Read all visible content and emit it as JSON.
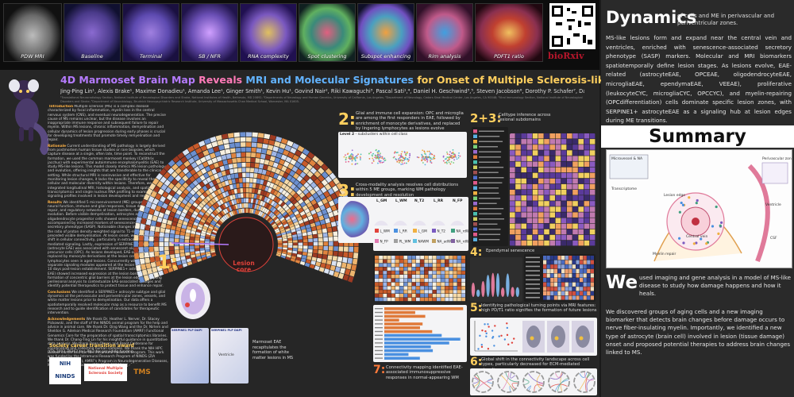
{
  "top_strip": {
    "thumbs": [
      {
        "label": "PDW MRI",
        "color": "#6a6a6a"
      },
      {
        "label": "Baseline",
        "color": "#4a3a8a"
      },
      {
        "label": "Terminal",
        "color": "#5d4ab0"
      },
      {
        "label": "SB / NFR",
        "color": "#6a4fb5"
      },
      {
        "label": "RNA complexity",
        "color": "#7a58c0"
      },
      {
        "label": "Spot clustering",
        "color": "#3a8a7a"
      },
      {
        "label": "Subspot enhancing",
        "color": "#4aa0c0"
      },
      {
        "label": "Rim analysis",
        "color": "#c05a8a"
      },
      {
        "label": "PDFT1 ratio",
        "color": "#8a3050"
      }
    ],
    "biorxiv": "bioRxiv"
  },
  "poster": {
    "title": {
      "part_a": "4D Marmoset Brain Map",
      "part_b": "Reveals",
      "part_c": "MRI and Molecular Signatures",
      "part_d": "for Onset of Multiple Sclerosis-like Lesions"
    },
    "authors": "Jing-Ping Lin¹, Alexis Brake¹, Maxime Donadieu¹, Amanda Lee¹, Ginger Smith¹, Kevin Hu¹, Govind Nair², Riki Kawaguchi³, Pascal Sati¹,⁴, Daniel H. Geschwind³,⁵, Steven Jacobson⁶, Dorothy P. Schafer⁷, Daniel S. Reich¹",
    "affiliations": "¹Translational Neuroradiology Section, National Institute of Neurological Disorders and Stroke, National Institutes of Health, Bethesda, MD 20892; ²Departments of Neurology and Human Genetics, University of California, Los Angeles; ³Department of Neurology, Cedars Sinai Medical Center, Los Angeles, CA 90048; ⁴Viral Immunology Section, National Institute of Neurological Disorders and Stroke; ⁵Department of Neurobiology, Brudnick Neuropsychiatric Research Institute, University of Massachusetts Chan Medical School, Worcester, MA 01605.",
    "intro_label": "Introduction",
    "intro_text": "Multiple sclerosis (MS) is a complex disease characterized by focal inflammation, myelin loss in the central nervous system (CNS), and eventual neurodegeneration. The precise cause of MS remains unclear, but the disease involves an inappropriate immune response and subsequent failure to repair myelin. Within MS lesions, chronic inflammation, demyelination and cellular dynamics of lesion progression during early phases is crucial for developing treatments that promote timely remyelination and repair.",
    "rationale_label": "Rationale",
    "rationale_text": "Current understanding of MS pathology is largely derived from postmortem human tissue studies or rare biopsies, which capture disease at a single, often late, time point. To reconstruct the formation, we used the common marmoset monkey (Callithrix jacchus) with experimental autoimmune encephalomyelitis (EAE) to study MS-like lesions. This model closely mimics MS lesion pathology and evolution, offering insights that are transferable to the clinical setting. While structural MRI is noninvasive and effective for monitoring lesion changes, it lacks the specificity to reveal the cellular and molecular diversity within lesions. Therefore, we integrated longitudinal MRI, histological analysis, and spatial transcriptomics and single nucleus RNA profiling to examine the signaling profiles involved in lesion development and resolution.",
    "results_label": "Results",
    "results_text": "We identified 5 microenvironment (ME) groups, related to neural function, immune and glial responses, tissue destruction and repair, and regulatory networks at lesion borders, during lesion evolution. Before visible demyelination, astrocytes and oligodendrocyte progenitor cells showed senescence features, accompanied by increased markers of senescence-associated secretory phenotype (SASP). Noticeable changes in an MRI biomarker, the ratio of proton density-weighted signal to T1-relaxation time, preceded visible demyelination. At lesion onset, we observed a global shift in cellular connectivity, particularly in extracellular matrix-mediated signaling. Lastly, expression of SERPINE1 in astrocytes (astrocyte EAE) was associated with senescent oligodendrocyte precursor cells (OPC). As lesions developed, EAE-associated glia were replaced by monocyte derivatives at the lesion center, with persistent lymphocytes seen in aged lesions. Concurrently with demyelination, separate signaling modules appeared at the lesion edge as early as 10 days post-lesion establishment. SERPINE1+ astrocytes (astrocyte EAE) showed increased expression at the lesion borders and the formation of concentric glial barriers at the lesion edge, prompting perilesional analysis to contextualize EAE-associated changes and identify potential therapeutics to protect tissue and enhance repair.",
    "conclusions_label": "Conclusions",
    "conclusions_text": "We identified a SERPINE1+ astrocyte subtype and glial dynamics at the perivascular and periventricular zones, vessels, and white matter lesions prior to demyelination. Our data offers a spatiotemporally resolved molecular map as a resource to benefit MS research and to guide identification of candidates for therapeutic intervention.",
    "ack_label": "Acknowledgements",
    "ack_text": "We thank Dr. Heather L. Nerver, Dr. Stacey Pickowski, and the staff of the NINDS animal program for the help and advice in animal care. We thank Dr. Qing Wang and the Dr. Nirlern and Sheldon G. Adelson Medical Research Foundation (AMRF) Functional Genomics Core for the preparation of spatial transcriptomics libraries. We thank Dr. Chang-Ting Lin for his insightful guidance in quantitative data analysis. We thank Dean Olsson and Brent Calderone for coordinating and collecting human samples. We thank the NIH HPC Biowulf cluster and the NIH Intramural Research Program. This work was funded by the Intramural Research Program of NINDS (ZIA NS003119 to D.S.R.), AMRF's Program in Neurodegenerative Diseases, Multiple Sclerosis Society (RFA-2203-39366 to J.-P.L.).",
    "society": "Society career transition award",
    "society_sub": "(TA-2203-39367 to J.-P.L.) for providing funding.",
    "lesion_core": "Lesion core",
    "sec1_num": "1:",
    "sec1_note": "Marmoset EAE recapitulates the formation of white matter lesions in MS",
    "sec1_mini_a": "SERPINE1 PLP DAPI",
    "sec1_mini_b": "SERPINE1 PLP DAPI",
    "sec1_ventricle": "Ventricle",
    "sec2_num": "2:",
    "sec2_title": "Glial and immune cell expansion: OPC and microglia are among the first responders in EAE, followed by enrichment of monocyte derivatives, and replaced by lingering lymphocytes as lesions evolve",
    "sec2_level": "Level 2",
    "sec2_level_sub": "- subclusters within cell class",
    "sec23_num": "2+3:",
    "sec23_title": "Celltype inference across lesional subdomains",
    "sec3_num": "3:",
    "sec3_title": "Cross-modality analysis resolves cell distributions within 5 ME groups, marking WM pathology development and resolution",
    "sec3_groups": [
      "L_GM",
      "L_WM",
      "N_T2",
      "L_RR",
      "N_FP"
    ],
    "sec4_num": "4:",
    "sec4_title": "Ependymal senescence",
    "sec5_num": "5:",
    "sec5_title": "Identifying pathological turning points via MRI features: high PD/T1 ratio signifies the formation of future lesions",
    "sec6_num": "6:",
    "sec6_title": "Global shift in the connectivity landscape across cell types, particularly decreased for ECM-mediated signaling",
    "sec7_num": "7:",
    "sec7_title": "Connectivity mapping identified EAE-associated immunosuppressive responses in normal-appearing WM",
    "logos": [
      "NIH NINDS",
      "National Multiple Sclerosis Society",
      "TMS"
    ],
    "legend_labels": [
      "L_WM",
      "L_RR",
      "L_GM",
      "N_T2",
      "NA_rdWM",
      "N_FP",
      "PL_WM",
      "NAWM",
      "NA_adWM",
      "NA_rdWM"
    ]
  },
  "right": {
    "dyn_head": "Dynamics",
    "dyn_sub": "of cells and ME in perivascular and periventricular zones.",
    "dyn_body": "MS-like lesions form and expand near the central vein and ventricles, enriched with senescence-associated secretory phenotype (SASP) markers. Molecular and MRI biomarkers spatiotemporally define lesion stages. As lesions evolve, EAE-related (astrocyteEAE, OPCEAE, oligodendrocyteEAE, microgliaEAE, ependymaEAE, VEEAE), proliferative (leukocyteCYC, microgliaCYC, OPCCYC), and myelin-repairing (OPCdifferentiation) cells dominate specific lesion zones, with SERPINE1+ astrocyteEAE as a signaling hub at lesion edges during ME transitions.",
    "summary": "Summary",
    "summary_fig_labels": [
      "Microvessel & NA",
      "Lesion edge",
      "Perivascular zone",
      "Ventricle",
      "CSF",
      "Central vein",
      "Myelin repair",
      "Transcriptome"
    ],
    "we_big": "We",
    "we_p1": "used imaging and gene analysis in a model of MS-like disease to study how damage happens and how it heals.",
    "we_p2": "We discovered groups of aging cells and a new imaging biomarker that detects brain changes before damage occurs to nerve fiber-insulating myelin. Importantly, we identified a new type of astrocyte (brain cell) involved in lesion (tissue damage) onset and proposed potential therapies to address brain changes linked to MS."
  },
  "colors": {
    "background": "#1a1a1a",
    "panel": "#262626",
    "accent_yellow": "#ffcf5e",
    "lesion_red": "#e0423a",
    "title_purple": "#b57bff"
  }
}
